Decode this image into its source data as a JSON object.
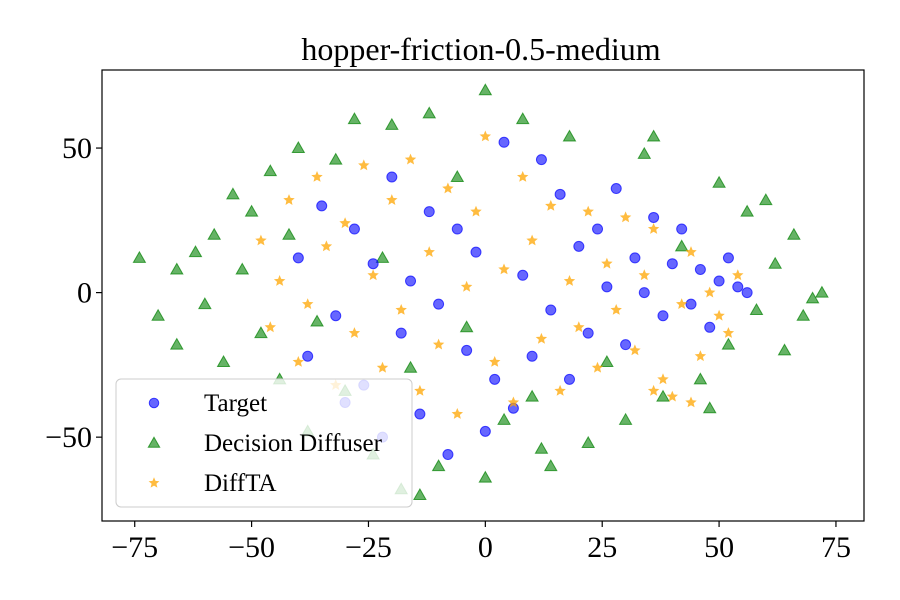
{
  "chart_data": {
    "type": "scatter",
    "title": "hopper-friction-0.5-medium",
    "xlabel": "",
    "ylabel": "",
    "xlim": [
      -82,
      81
    ],
    "ylim": [
      -79,
      77
    ],
    "x_ticks": [
      -75,
      -50,
      -25,
      0,
      25,
      50,
      75
    ],
    "x_tick_labels": [
      "−75",
      "−50",
      "−25",
      "0",
      "25",
      "50",
      "75"
    ],
    "y_ticks": [
      50,
      0,
      -50
    ],
    "y_tick_labels": [
      "50",
      "0",
      "−50"
    ],
    "grid": false,
    "legend_position": "lower-left",
    "series": [
      {
        "name": "Decision Diffuser",
        "marker": "triangle",
        "color": "#008000",
        "points": [
          [
            -74,
            12
          ],
          [
            -70,
            -8
          ],
          [
            -66,
            -18
          ],
          [
            -66,
            8
          ],
          [
            -62,
            14
          ],
          [
            -60,
            -4
          ],
          [
            -58,
            20
          ],
          [
            -56,
            -24
          ],
          [
            -54,
            34
          ],
          [
            -52,
            8
          ],
          [
            -50,
            28
          ],
          [
            -48,
            -14
          ],
          [
            -46,
            42
          ],
          [
            -44,
            -30
          ],
          [
            -42,
            20
          ],
          [
            -40,
            50
          ],
          [
            -38,
            -48
          ],
          [
            -36,
            -10
          ],
          [
            -32,
            46
          ],
          [
            -30,
            -34
          ],
          [
            -28,
            60
          ],
          [
            -24,
            -56
          ],
          [
            -22,
            12
          ],
          [
            -20,
            58
          ],
          [
            -18,
            -68
          ],
          [
            -16,
            -26
          ],
          [
            -12,
            62
          ],
          [
            -10,
            -60
          ],
          [
            -6,
            40
          ],
          [
            -4,
            -12
          ],
          [
            0,
            70
          ],
          [
            0,
            -64
          ],
          [
            4,
            -44
          ],
          [
            8,
            60
          ],
          [
            10,
            -36
          ],
          [
            14,
            -60
          ],
          [
            18,
            54
          ],
          [
            22,
            -52
          ],
          [
            26,
            -24
          ],
          [
            30,
            -44
          ],
          [
            34,
            48
          ],
          [
            38,
            -36
          ],
          [
            42,
            16
          ],
          [
            46,
            -30
          ],
          [
            50,
            38
          ],
          [
            52,
            -18
          ],
          [
            56,
            28
          ],
          [
            58,
            -6
          ],
          [
            60,
            32
          ],
          [
            62,
            10
          ],
          [
            64,
            -20
          ],
          [
            66,
            20
          ],
          [
            68,
            -8
          ],
          [
            70,
            -2
          ],
          [
            72,
            0
          ],
          [
            48,
            -40
          ],
          [
            36,
            54
          ],
          [
            12,
            -54
          ],
          [
            -14,
            -70
          ]
        ]
      },
      {
        "name": "Target",
        "marker": "circle",
        "color": "#0000ff",
        "points": [
          [
            -40,
            12
          ],
          [
            -38,
            -22
          ],
          [
            -35,
            30
          ],
          [
            -32,
            -8
          ],
          [
            -30,
            -38
          ],
          [
            -28,
            22
          ],
          [
            -26,
            -32
          ],
          [
            -24,
            10
          ],
          [
            -22,
            -50
          ],
          [
            -20,
            40
          ],
          [
            -18,
            -14
          ],
          [
            -16,
            4
          ],
          [
            -14,
            -42
          ],
          [
            -12,
            28
          ],
          [
            -10,
            -4
          ],
          [
            -8,
            -56
          ],
          [
            -6,
            22
          ],
          [
            -4,
            -20
          ],
          [
            -2,
            14
          ],
          [
            0,
            -48
          ],
          [
            2,
            -30
          ],
          [
            4,
            52
          ],
          [
            6,
            -40
          ],
          [
            8,
            6
          ],
          [
            10,
            -22
          ],
          [
            12,
            46
          ],
          [
            14,
            -6
          ],
          [
            16,
            34
          ],
          [
            18,
            -30
          ],
          [
            20,
            16
          ],
          [
            22,
            -14
          ],
          [
            24,
            22
          ],
          [
            26,
            2
          ],
          [
            28,
            36
          ],
          [
            30,
            -18
          ],
          [
            32,
            12
          ],
          [
            34,
            0
          ],
          [
            36,
            26
          ],
          [
            38,
            -8
          ],
          [
            40,
            10
          ],
          [
            42,
            22
          ],
          [
            44,
            -4
          ],
          [
            46,
            8
          ],
          [
            48,
            -12
          ],
          [
            50,
            4
          ],
          [
            52,
            12
          ],
          [
            54,
            2
          ],
          [
            56,
            0
          ]
        ]
      },
      {
        "name": "DiffTA",
        "marker": "star",
        "color": "#ffa500",
        "points": [
          [
            -48,
            18
          ],
          [
            -46,
            -12
          ],
          [
            -44,
            4
          ],
          [
            -42,
            32
          ],
          [
            -40,
            -24
          ],
          [
            -38,
            -4
          ],
          [
            -36,
            40
          ],
          [
            -34,
            16
          ],
          [
            -32,
            -32
          ],
          [
            -30,
            24
          ],
          [
            -28,
            -14
          ],
          [
            -26,
            44
          ],
          [
            -24,
            6
          ],
          [
            -22,
            -26
          ],
          [
            -20,
            32
          ],
          [
            -18,
            -6
          ],
          [
            -16,
            46
          ],
          [
            -14,
            -34
          ],
          [
            -12,
            14
          ],
          [
            -10,
            -18
          ],
          [
            -8,
            36
          ],
          [
            -6,
            -42
          ],
          [
            -4,
            2
          ],
          [
            -2,
            28
          ],
          [
            0,
            54
          ],
          [
            2,
            -24
          ],
          [
            4,
            8
          ],
          [
            6,
            -38
          ],
          [
            8,
            40
          ],
          [
            10,
            18
          ],
          [
            12,
            -16
          ],
          [
            14,
            30
          ],
          [
            16,
            -34
          ],
          [
            18,
            4
          ],
          [
            20,
            -12
          ],
          [
            22,
            28
          ],
          [
            24,
            -26
          ],
          [
            26,
            10
          ],
          [
            28,
            -6
          ],
          [
            30,
            26
          ],
          [
            32,
            -20
          ],
          [
            34,
            6
          ],
          [
            36,
            22
          ],
          [
            38,
            -30
          ],
          [
            40,
            -36
          ],
          [
            42,
            -4
          ],
          [
            44,
            14
          ],
          [
            46,
            -22
          ],
          [
            48,
            0
          ],
          [
            50,
            -8
          ],
          [
            52,
            -14
          ],
          [
            54,
            6
          ],
          [
            44,
            -38
          ],
          [
            36,
            -34
          ]
        ]
      }
    ]
  }
}
